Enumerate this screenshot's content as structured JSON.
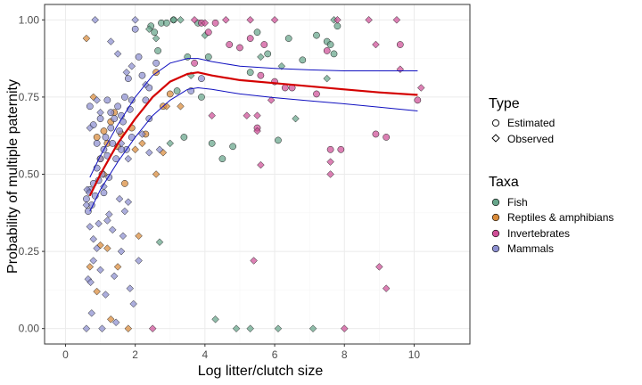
{
  "chart_data": {
    "type": "scatter",
    "xlabel": "Log litter/clutch size",
    "ylabel": "Probability of multiple paternity",
    "xlim": [
      -0.6,
      11.6
    ],
    "ylim": [
      -0.05,
      1.05
    ],
    "xticks": [
      0,
      2,
      4,
      6,
      8,
      10
    ],
    "xtick_labels": [
      "0",
      "2",
      "4",
      "6",
      "8",
      "10"
    ],
    "yticks": [
      0,
      0.25,
      0.5,
      0.75,
      1.0
    ],
    "ytick_labels": [
      "0.00",
      "0.25",
      "0.50",
      "0.75",
      "1.00"
    ],
    "grid": true,
    "legend_placement": "right",
    "legend_type": {
      "title": "Type",
      "items": [
        {
          "label": "Estimated",
          "shape": "circle"
        },
        {
          "label": "Observed",
          "shape": "diamond"
        }
      ]
    },
    "legend_taxa": {
      "title": "Taxa",
      "items": [
        {
          "label": "Fish",
          "color": "#66a58a"
        },
        {
          "label": "Reptiles & amphibians",
          "color": "#d98b3a"
        },
        {
          "label": "Invertebrates",
          "color": "#cf4f97"
        },
        {
          "label": "Mammals",
          "color": "#8c8fd0"
        }
      ]
    },
    "colors": {
      "fit": "#d40000",
      "ci": "#1010c0",
      "grid_major": "#ebebeb",
      "grid_minor": "#f5f5f5",
      "panel_border": "#333333"
    },
    "fit_curve": {
      "x": [
        0.7,
        1.0,
        1.5,
        2.0,
        2.5,
        3.0,
        3.5,
        3.8,
        4.2,
        5.0,
        6.0,
        7.0,
        8.0,
        9.0,
        10.1
      ],
      "y": [
        0.43,
        0.5,
        0.6,
        0.68,
        0.75,
        0.8,
        0.825,
        0.83,
        0.82,
        0.805,
        0.795,
        0.785,
        0.775,
        0.765,
        0.757
      ]
    },
    "ci_upper": {
      "x": [
        0.7,
        1.0,
        1.5,
        2.0,
        2.5,
        3.0,
        3.5,
        3.8,
        4.2,
        5.0,
        6.0,
        7.0,
        8.0,
        9.0,
        10.1
      ],
      "y": [
        0.49,
        0.56,
        0.66,
        0.75,
        0.82,
        0.86,
        0.875,
        0.875,
        0.865,
        0.85,
        0.843,
        0.838,
        0.835,
        0.835,
        0.835
      ]
    },
    "ci_lower": {
      "x": [
        0.7,
        1.0,
        1.5,
        2.0,
        2.5,
        3.0,
        3.5,
        3.8,
        4.2,
        5.0,
        6.0,
        7.0,
        8.0,
        9.0,
        10.1
      ],
      "y": [
        0.38,
        0.45,
        0.54,
        0.62,
        0.69,
        0.74,
        0.775,
        0.78,
        0.775,
        0.76,
        0.748,
        0.738,
        0.728,
        0.717,
        0.705
      ]
    },
    "series": [
      {
        "taxon": "Fish",
        "type": "Estimated",
        "points": [
          [
            2.45,
            0.98
          ],
          [
            2.55,
            0.96
          ],
          [
            2.65,
            0.9
          ],
          [
            2.75,
            0.99
          ],
          [
            3.2,
            0.77
          ],
          [
            3.4,
            0.62
          ],
          [
            3.5,
            0.88
          ],
          [
            3.8,
            0.99
          ],
          [
            3.9,
            0.75
          ],
          [
            4.1,
            0.88
          ],
          [
            4.2,
            0.6
          ],
          [
            4.5,
            0.55
          ],
          [
            4.8,
            0.59
          ],
          [
            5.3,
            0.83
          ],
          [
            5.5,
            0.96
          ],
          [
            5.8,
            0.89
          ],
          [
            6.1,
            0.61
          ],
          [
            6.4,
            0.94
          ],
          [
            6.8,
            0.87
          ],
          [
            7.2,
            0.95
          ],
          [
            7.5,
            0.93
          ],
          [
            7.7,
            0.89
          ],
          [
            7.8,
            0.98
          ],
          [
            7.6,
            0.92
          ],
          [
            2.9,
            0.99
          ],
          [
            3.1,
            1.0
          ]
        ]
      },
      {
        "taxon": "Fish",
        "type": "Observed",
        "points": [
          [
            2.4,
            0.97
          ],
          [
            2.7,
            0.28
          ],
          [
            3.0,
            0.6
          ],
          [
            3.3,
            1.0
          ],
          [
            3.6,
            0.82
          ],
          [
            4.0,
            0.95
          ],
          [
            4.3,
            0.03
          ],
          [
            4.9,
            0.0
          ],
          [
            5.3,
            0.0
          ],
          [
            5.6,
            0.88
          ],
          [
            6.2,
            0.85
          ],
          [
            6.1,
            0.0
          ],
          [
            6.6,
            0.68
          ],
          [
            7.1,
            0.0
          ],
          [
            7.5,
            0.81
          ],
          [
            7.7,
            1.0
          ],
          [
            3.1,
            1.0
          ],
          [
            2.6,
            0.94
          ]
        ]
      },
      {
        "taxon": "Reptiles & amphibians",
        "type": "Estimated",
        "points": [
          [
            0.9,
            0.62
          ],
          [
            1.0,
            0.55
          ],
          [
            1.1,
            0.64
          ],
          [
            1.2,
            0.6
          ],
          [
            1.3,
            0.67
          ],
          [
            1.5,
            0.59
          ],
          [
            1.6,
            0.63
          ],
          [
            1.7,
            0.47
          ],
          [
            2.3,
            0.63
          ],
          [
            2.6,
            0.83
          ],
          [
            2.8,
            0.72
          ],
          [
            3.0,
            0.76
          ],
          [
            1.4,
            0.7
          ],
          [
            1.9,
            0.65
          ]
        ]
      },
      {
        "taxon": "Reptiles & amphibians",
        "type": "Observed",
        "points": [
          [
            0.6,
            0.94
          ],
          [
            0.8,
            0.75
          ],
          [
            0.9,
            0.12
          ],
          [
            1.0,
            0.27
          ],
          [
            1.2,
            0.26
          ],
          [
            1.3,
            0.03
          ],
          [
            1.5,
            0.2
          ],
          [
            1.8,
            0.0
          ],
          [
            2.1,
            0.3
          ],
          [
            2.6,
            0.5
          ],
          [
            2.8,
            0.57
          ],
          [
            2.9,
            0.72
          ],
          [
            3.3,
            0.72
          ],
          [
            0.7,
            0.2
          ],
          [
            1.1,
            0.5
          ],
          [
            2.0,
            0.58
          ],
          [
            2.2,
            0.6
          ]
        ]
      },
      {
        "taxon": "Invertebrates",
        "type": "Estimated",
        "points": [
          [
            3.9,
            0.99
          ],
          [
            4.1,
            0.96
          ],
          [
            4.3,
            0.99
          ],
          [
            4.7,
            0.92
          ],
          [
            5.0,
            0.91
          ],
          [
            5.3,
            0.94
          ],
          [
            5.6,
            0.82
          ],
          [
            5.7,
            0.92
          ],
          [
            6.0,
            0.8
          ],
          [
            6.5,
            0.78
          ],
          [
            7.2,
            0.76
          ],
          [
            7.5,
            0.9
          ],
          [
            7.6,
            0.58
          ],
          [
            7.9,
            0.58
          ],
          [
            8.9,
            0.63
          ],
          [
            9.2,
            0.62
          ],
          [
            9.6,
            0.92
          ],
          [
            10.1,
            0.74
          ],
          [
            3.7,
            0.86
          ],
          [
            5.5,
            0.65
          ],
          [
            6.3,
            0.78
          ]
        ]
      },
      {
        "taxon": "Invertebrates",
        "type": "Observed",
        "points": [
          [
            2.5,
            0.0
          ],
          [
            4.2,
            0.69
          ],
          [
            4.6,
            1.0
          ],
          [
            5.3,
            1.0
          ],
          [
            5.4,
            0.22
          ],
          [
            5.5,
            0.64
          ],
          [
            5.6,
            0.53
          ],
          [
            6.0,
            1.0
          ],
          [
            7.6,
            0.54
          ],
          [
            7.6,
            0.5
          ],
          [
            7.8,
            1.0
          ],
          [
            8.0,
            0.0
          ],
          [
            8.7,
            1.0
          ],
          [
            9.0,
            0.2
          ],
          [
            9.2,
            0.13
          ],
          [
            9.5,
            1.0
          ],
          [
            9.6,
            0.84
          ],
          [
            10.2,
            0.78
          ],
          [
            5.9,
            0.74
          ],
          [
            5.2,
            0.69
          ],
          [
            5.5,
            0.69
          ],
          [
            3.7,
            1.0
          ],
          [
            4.0,
            0.99
          ],
          [
            8.9,
            0.92
          ]
        ]
      },
      {
        "taxon": "Mammals",
        "type": "Estimated",
        "points": [
          [
            0.6,
            0.42
          ],
          [
            0.65,
            0.38
          ],
          [
            0.7,
            0.45
          ],
          [
            0.75,
            0.4
          ],
          [
            0.8,
            0.47
          ],
          [
            0.85,
            0.43
          ],
          [
            0.9,
            0.52
          ],
          [
            0.95,
            0.48
          ],
          [
            1.0,
            0.55
          ],
          [
            1.05,
            0.5
          ],
          [
            1.1,
            0.58
          ],
          [
            1.15,
            0.62
          ],
          [
            1.2,
            0.56
          ],
          [
            1.3,
            0.65
          ],
          [
            1.35,
            0.6
          ],
          [
            1.4,
            0.68
          ],
          [
            1.45,
            0.55
          ],
          [
            1.5,
            0.72
          ],
          [
            1.55,
            0.64
          ],
          [
            1.6,
            0.69
          ],
          [
            1.65,
            0.67
          ],
          [
            1.7,
            0.75
          ],
          [
            1.75,
            0.58
          ],
          [
            1.8,
            0.81
          ],
          [
            1.85,
            0.71
          ],
          [
            1.9,
            0.74
          ],
          [
            2.0,
            0.97
          ],
          [
            2.1,
            0.88
          ],
          [
            2.2,
            0.82
          ],
          [
            2.3,
            0.74
          ],
          [
            2.4,
            0.68
          ],
          [
            2.6,
            0.86
          ],
          [
            3.6,
            0.77
          ],
          [
            3.9,
            0.81
          ],
          [
            0.7,
            0.72
          ],
          [
            0.8,
            0.66
          ],
          [
            1.0,
            0.68
          ],
          [
            1.2,
            0.74
          ],
          [
            1.3,
            0.7
          ],
          [
            2.4,
            0.78
          ],
          [
            1.6,
            0.58
          ],
          [
            0.9,
            0.6
          ],
          [
            1.1,
            0.44
          ],
          [
            1.25,
            0.49
          ],
          [
            1.9,
            0.62
          ]
        ]
      },
      {
        "taxon": "Mammals",
        "type": "Observed",
        "points": [
          [
            0.6,
            0.0
          ],
          [
            0.65,
            0.16
          ],
          [
            0.7,
            0.33
          ],
          [
            0.7,
            0.65
          ],
          [
            0.75,
            0.05
          ],
          [
            0.8,
            0.22
          ],
          [
            0.85,
            1.0
          ],
          [
            0.9,
            0.26
          ],
          [
            1.0,
            0.19
          ],
          [
            1.05,
            0.0
          ],
          [
            1.1,
            0.46
          ],
          [
            1.2,
            0.35
          ],
          [
            1.3,
            0.93
          ],
          [
            1.35,
            0.32
          ],
          [
            1.4,
            0.17
          ],
          [
            1.5,
            0.89
          ],
          [
            1.55,
            0.42
          ],
          [
            1.6,
            0.25
          ],
          [
            1.65,
            0.3
          ],
          [
            1.7,
            0.38
          ],
          [
            1.75,
            0.83
          ],
          [
            1.8,
            0.55
          ],
          [
            1.85,
            0.13
          ],
          [
            1.9,
            0.85
          ],
          [
            1.95,
            0.08
          ],
          [
            2.0,
            1.0
          ],
          [
            2.1,
            0.22
          ],
          [
            2.2,
            0.63
          ],
          [
            2.3,
            0.79
          ],
          [
            2.4,
            0.57
          ],
          [
            0.9,
            0.74
          ],
          [
            0.6,
            0.4
          ],
          [
            0.62,
            0.45
          ],
          [
            0.68,
            0.44
          ],
          [
            1.0,
            0.7
          ],
          [
            1.15,
            0.11
          ],
          [
            1.25,
            0.37
          ],
          [
            1.45,
            0.02
          ],
          [
            1.6,
            0.6
          ],
          [
            0.8,
            0.29
          ],
          [
            0.72,
            0.15
          ],
          [
            1.8,
            0.41
          ],
          [
            2.7,
            0.58
          ],
          [
            0.95,
            0.34
          ]
        ]
      }
    ]
  }
}
